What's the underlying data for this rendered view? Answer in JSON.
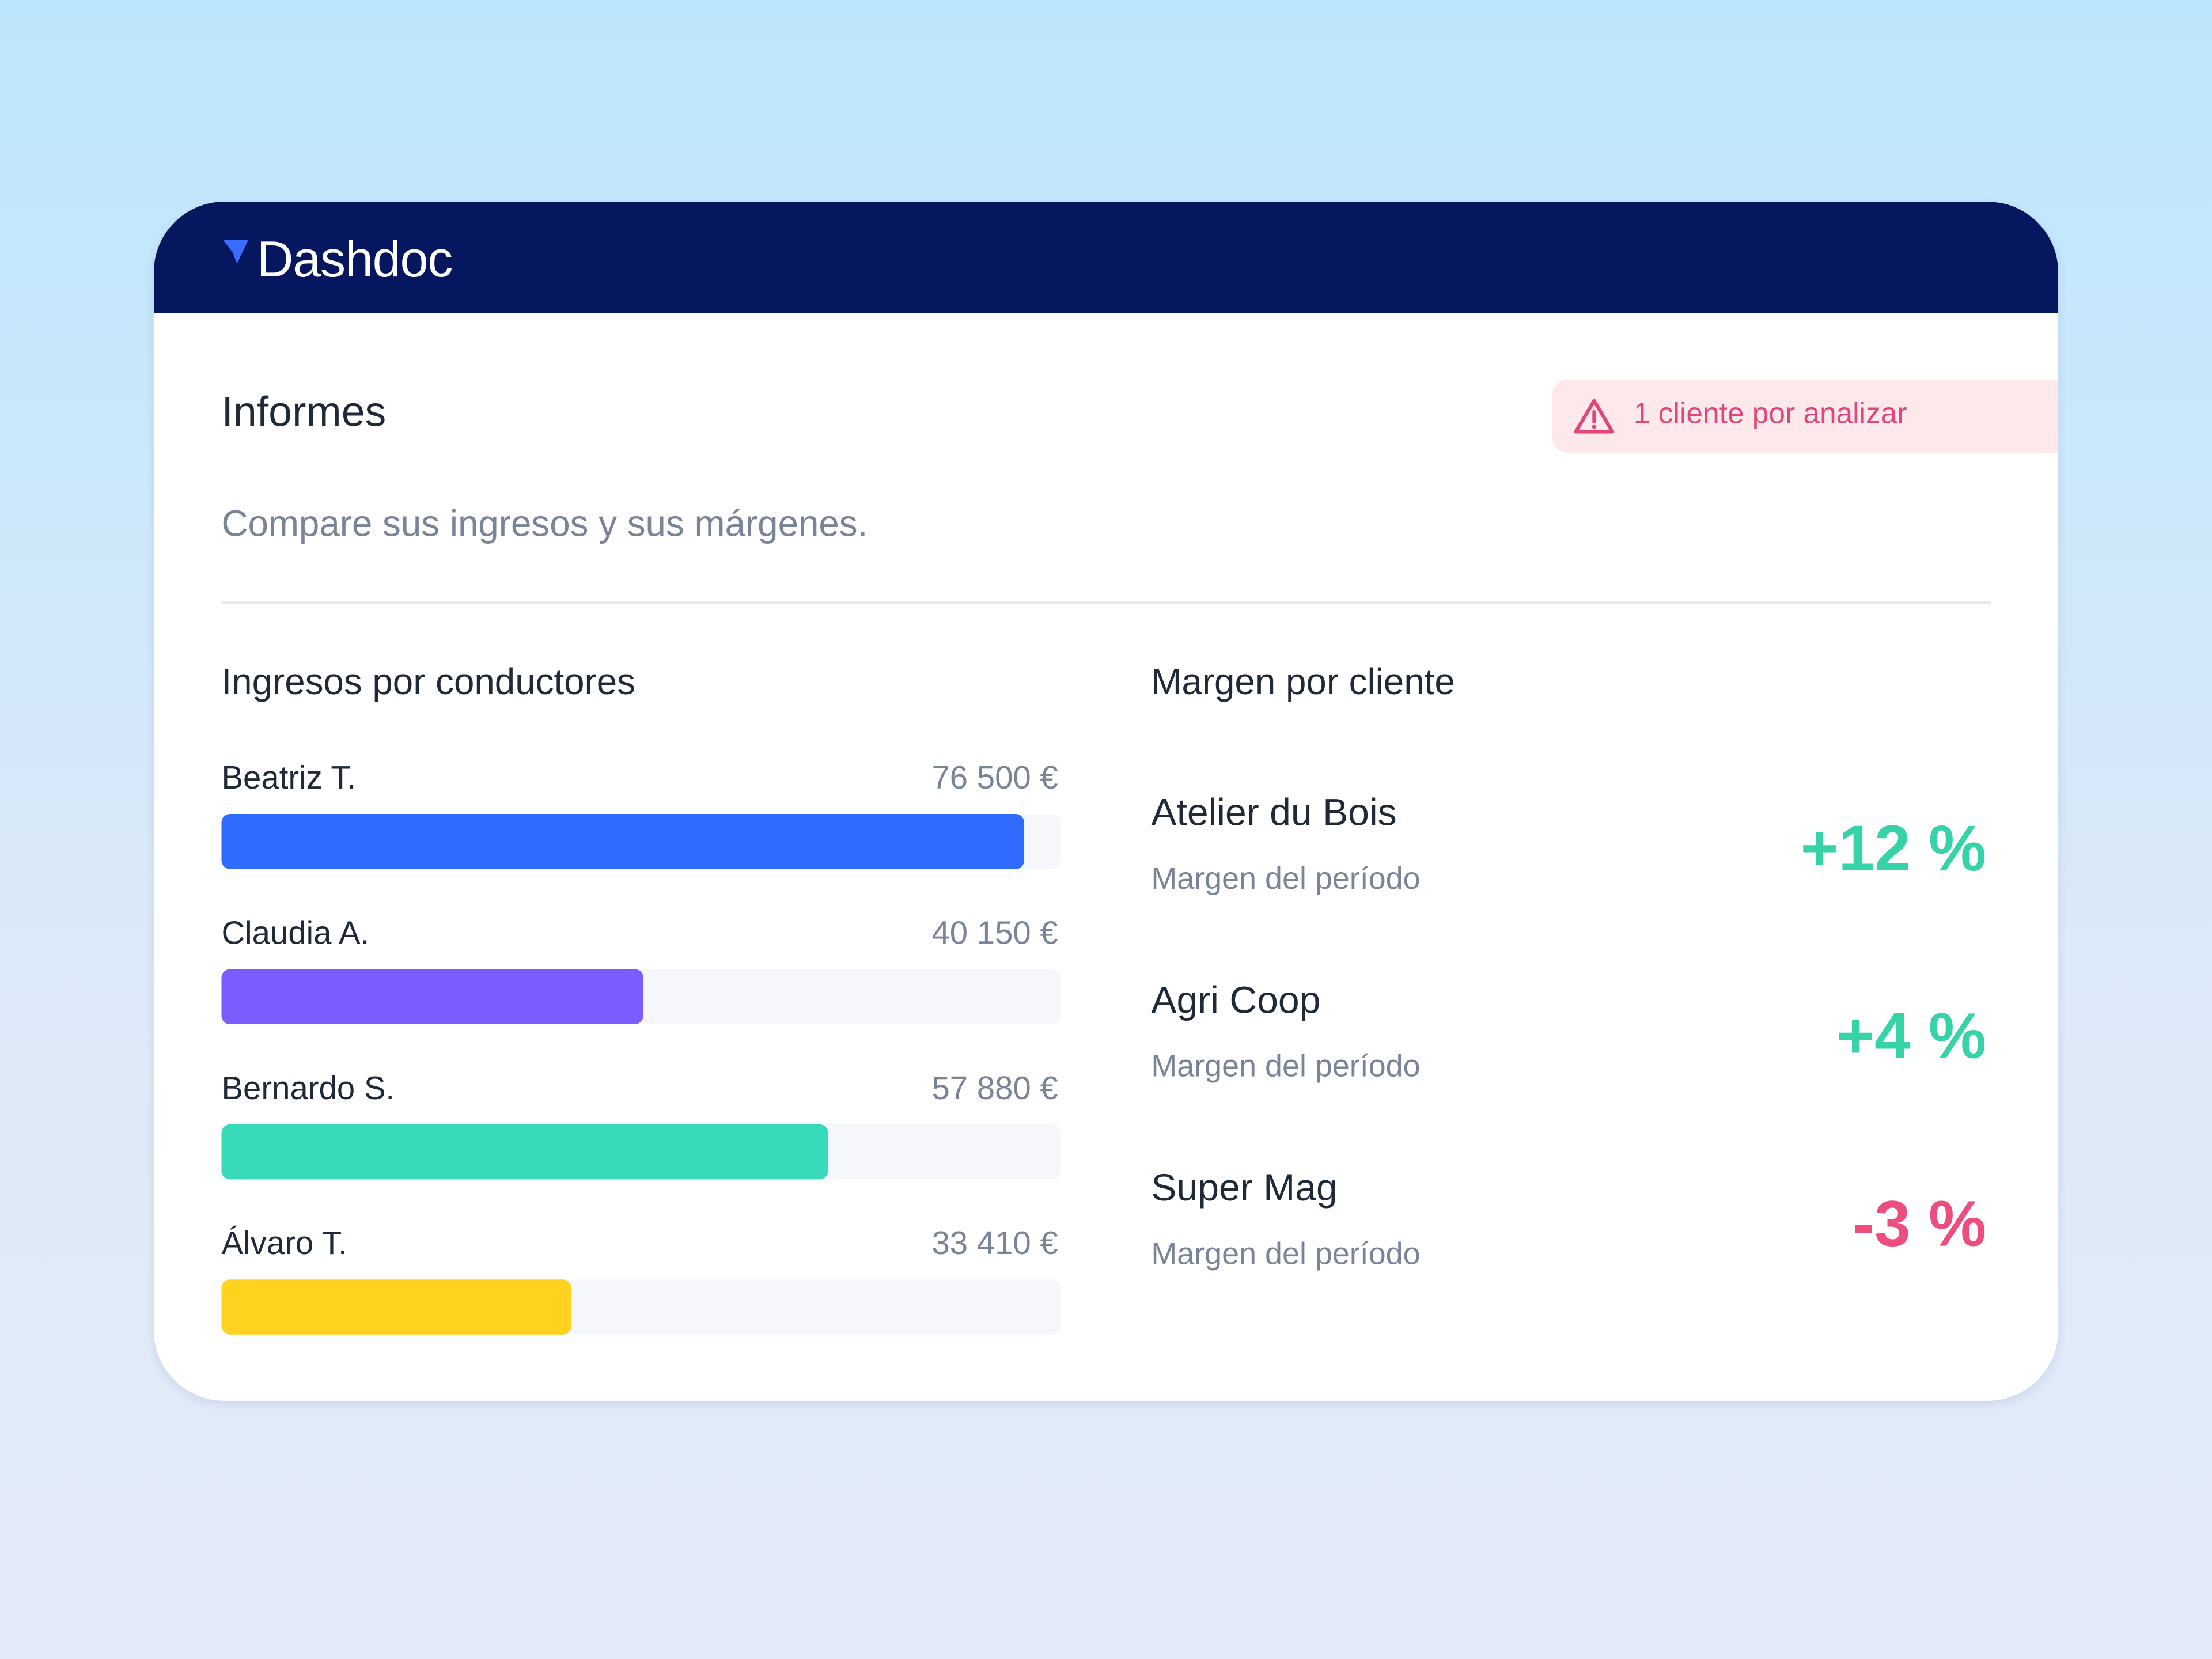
{
  "header": {
    "brand": "Dashdoc"
  },
  "page": {
    "title": "Informes",
    "subtitle": "Compare sus ingresos y sus márgenes.",
    "alert": "1 cliente por analizar"
  },
  "drivers": {
    "title": "Ingresos por conductores",
    "xlim": [
      0,
      80000
    ],
    "items": [
      {
        "name": "Beatriz T.",
        "value": 76500,
        "value_label": "76 500 €",
        "color": "#2f6bff"
      },
      {
        "name": "Claudia A.",
        "value": 40150,
        "value_label": "40 150 €",
        "color": "#7b5cff"
      },
      {
        "name": "Bernardo S.",
        "value": 57880,
        "value_label": "57 880 €",
        "color": "#38d9b9"
      },
      {
        "name": "Álvaro T.",
        "value": 33410,
        "value_label": "33 410 €",
        "color": "#ffd21f"
      }
    ]
  },
  "clients": {
    "title": "Margen por cliente",
    "items": [
      {
        "name": "Atelier du Bois",
        "caption": "Margen del período",
        "value": 12,
        "value_label": "+12 %",
        "color": "#35d3a7"
      },
      {
        "name": "Agri Coop",
        "caption": "Margen del período",
        "value": 4,
        "value_label": "+4 %",
        "color": "#35d3a7"
      },
      {
        "name": "Super Mag",
        "caption": "Margen del período",
        "value": -3,
        "value_label": "-3 %",
        "color": "#ee4d7f"
      }
    ]
  }
}
